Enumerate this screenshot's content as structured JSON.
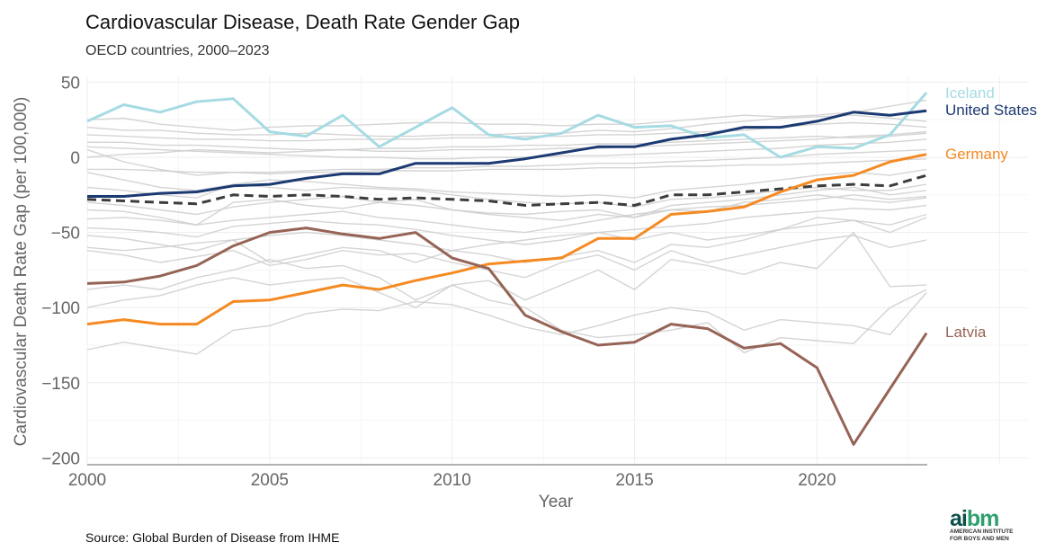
{
  "title": "Cardiovascular Disease, Death Rate Gender Gap",
  "subtitle": "OECD countries, 2000–2023",
  "source": "Source: Global Burden of Disease from IHME",
  "logo": {
    "mark": "aibm",
    "line1": "AMERICAN INSTITUTE",
    "line2": "FOR BOYS AND MEN"
  },
  "chart_data": {
    "type": "line",
    "xlabel": "Year",
    "ylabel": "Cardiovascular Death Rate Gap (per 100,000)",
    "xlim": [
      2000,
      2023
    ],
    "ylim": [
      -200,
      50
    ],
    "x_ticks": [
      2000,
      2005,
      2010,
      2015,
      2020
    ],
    "y_ticks": [
      50,
      0,
      -50,
      -100,
      -150,
      -200
    ],
    "y_tick_labels": [
      "50",
      "0",
      "−50",
      "−100",
      "−150",
      "−200"
    ],
    "grid": true,
    "legend": "direct labels at right",
    "x": [
      2000,
      2001,
      2002,
      2003,
      2004,
      2005,
      2006,
      2007,
      2008,
      2009,
      2010,
      2011,
      2012,
      2013,
      2014,
      2015,
      2016,
      2017,
      2018,
      2019,
      2020,
      2021,
      2022,
      2023
    ],
    "highlighted": [
      {
        "name": "Iceland",
        "color": "#a6dbe3",
        "values": [
          24,
          35,
          30,
          37,
          39,
          17,
          14,
          28,
          7,
          20,
          33,
          15,
          12,
          16,
          28,
          20,
          21,
          13,
          15,
          0,
          7,
          6,
          15,
          43
        ]
      },
      {
        "name": "United States",
        "color": "#1c3a72",
        "values": [
          -26,
          -26,
          -24,
          -23,
          -19,
          -18,
          -14,
          -11,
          -11,
          -4,
          -4,
          -4,
          -1,
          3,
          7,
          7,
          12,
          15,
          20,
          20,
          24,
          30,
          28,
          31
        ]
      },
      {
        "name": "Germany",
        "color": "#f58a22",
        "values": [
          -111,
          -108,
          -111,
          -111,
          -96,
          -95,
          -90,
          -85,
          -88,
          -82,
          -77,
          -71,
          -69,
          -67,
          -54,
          -54,
          -38,
          -36,
          -33,
          -23,
          -15,
          -12,
          -3,
          2
        ]
      },
      {
        "name": "Latvia",
        "color": "#966456",
        "values": [
          -84,
          -83,
          -79,
          -72,
          -59,
          -50,
          -47,
          -51,
          -54,
          -50,
          -67,
          -74,
          -105,
          -116,
          -125,
          -123,
          -111,
          -114,
          -127,
          -124,
          -140,
          -191,
          -154,
          -117
        ]
      }
    ],
    "average": {
      "color": "#3d3d3d",
      "dashed": true,
      "values": [
        -28,
        -29,
        -30,
        -31,
        -25,
        -26,
        -25,
        -26,
        -28,
        -27,
        -28,
        -29,
        -32,
        -31,
        -30,
        -32,
        -25,
        -25,
        -23,
        -21,
        -19,
        -18,
        -19,
        -12
      ]
    },
    "other_countries": {
      "color": "#cccccc",
      "series": [
        [
          25,
          26,
          22,
          20,
          18,
          20,
          21,
          21,
          22,
          23,
          23,
          22,
          22,
          21,
          22,
          22,
          24,
          26,
          28,
          27,
          28,
          30,
          34,
          38
        ],
        [
          20,
          18,
          18,
          16,
          15,
          15,
          16,
          15,
          14,
          14,
          15,
          15,
          16,
          16,
          18,
          17,
          19,
          22,
          24,
          26,
          27,
          28,
          26,
          24
        ],
        [
          15,
          14,
          13,
          12,
          12,
          11,
          11,
          12,
          12,
          12,
          13,
          13,
          14,
          14,
          15,
          15,
          16,
          17,
          18,
          20,
          22,
          23,
          22,
          20
        ],
        [
          10,
          10,
          8,
          8,
          7,
          6,
          5,
          5,
          4,
          4,
          5,
          5,
          5,
          6,
          6,
          7,
          8,
          9,
          10,
          11,
          12,
          14,
          15,
          17
        ],
        [
          7,
          6,
          5,
          4,
          3,
          2,
          1,
          0,
          0,
          -1,
          -1,
          0,
          0,
          1,
          1,
          2,
          3,
          4,
          5,
          6,
          8,
          9,
          10,
          12
        ],
        [
          5,
          -3,
          -8,
          -12,
          -10,
          -10,
          -9,
          -8,
          -8,
          -7,
          -7,
          -6,
          -6,
          -5,
          -4,
          -4,
          -3,
          -2,
          -1,
          0,
          2,
          3,
          4,
          5
        ],
        [
          -8,
          -8,
          -9,
          -10,
          -10,
          -11,
          -10,
          -10,
          -9,
          -9,
          -9,
          -8,
          -8,
          -8,
          -7,
          -7,
          -6,
          -6,
          -5,
          -5,
          -4,
          -3,
          -2,
          -1
        ],
        [
          -20,
          -22,
          -25,
          -27,
          -18,
          -15,
          -16,
          -18,
          -20,
          -21,
          -23,
          -24,
          -25,
          -26,
          -25,
          -27,
          -22,
          -20,
          -18,
          -15,
          -12,
          -10,
          -12,
          -8
        ],
        [
          -35,
          -36,
          -40,
          -45,
          -30,
          -28,
          -32,
          -34,
          -30,
          -28,
          -35,
          -37,
          -38,
          -36,
          -35,
          -40,
          -32,
          -30,
          -28,
          -25,
          -22,
          -20,
          -25,
          -22
        ],
        [
          -41,
          -40,
          -42,
          -45,
          -42,
          -40,
          -38,
          -36,
          -40,
          -42,
          -45,
          -48,
          -50,
          -46,
          -42,
          -38,
          -35,
          -33,
          -32,
          -30,
          -28,
          -25,
          -28,
          -26
        ],
        [
          -47,
          -48,
          -50,
          -53,
          -46,
          -44,
          -42,
          -44,
          -45,
          -48,
          -52,
          -55,
          -58,
          -55,
          -50,
          -48,
          -46,
          -44,
          -40,
          -38,
          -36,
          -34,
          -35,
          -32
        ],
        [
          -52,
          -54,
          -58,
          -62,
          -55,
          -52,
          -50,
          -52,
          -55,
          -58,
          -62,
          -65,
          -70,
          -66,
          -62,
          -70,
          -58,
          -60,
          -55,
          -48,
          -45,
          -42,
          -50,
          -40
        ],
        [
          -60,
          -62,
          -60,
          -57,
          -55,
          -70,
          -65,
          -60,
          -62,
          -70,
          -62,
          -58,
          -55,
          -52,
          -50,
          -55,
          -50,
          -55,
          -52,
          -48,
          -40,
          -42,
          -45,
          -38
        ],
        [
          -62,
          -65,
          -70,
          -66,
          -62,
          -72,
          -68,
          -62,
          -65,
          -64,
          -70,
          -75,
          -80,
          -70,
          -65,
          -75,
          -62,
          -70,
          -65,
          -60,
          -55,
          -52,
          -60,
          -55
        ],
        [
          -88,
          -85,
          -88,
          -80,
          -75,
          -68,
          -74,
          -72,
          -80,
          -95,
          -85,
          -82,
          -95,
          -85,
          -75,
          -88,
          -68,
          -72,
          -78,
          -70,
          -74,
          -50,
          -86,
          -85
        ],
        [
          -128,
          -123,
          -127,
          -131,
          -115,
          -112,
          -104,
          -101,
          -102,
          -96,
          -98,
          -105,
          -113,
          -118,
          -112,
          -105,
          -100,
          -103,
          -115,
          -108,
          -110,
          -112,
          -118,
          -90
        ],
        [
          -30,
          -32,
          -35,
          -38,
          -33,
          -30,
          -28,
          -26,
          -30,
          -32,
          -35,
          -38,
          -40,
          -42,
          -38,
          -40,
          -35,
          -36,
          -30,
          -28,
          -25,
          -28,
          -30,
          -27
        ],
        [
          -10,
          -15,
          -20,
          -22,
          -18,
          -20,
          -22,
          -20,
          -21,
          -22,
          -25,
          -28,
          -30,
          -31,
          -30,
          -33,
          -28,
          -27,
          -25,
          -22,
          -20,
          -22,
          -22,
          -18
        ],
        [
          -100,
          -95,
          -92,
          -85,
          -80,
          -85,
          -82,
          -80,
          -90,
          -100,
          -85,
          -95,
          -100,
          -115,
          -120,
          -118,
          -115,
          -110,
          -130,
          -120,
          -122,
          -124,
          -100,
          -88
        ],
        [
          0,
          2,
          3,
          5,
          4,
          3,
          4,
          5,
          6,
          6,
          7,
          7,
          8,
          8,
          9,
          9,
          10,
          11,
          12,
          13,
          14,
          13,
          14,
          16
        ]
      ]
    }
  }
}
